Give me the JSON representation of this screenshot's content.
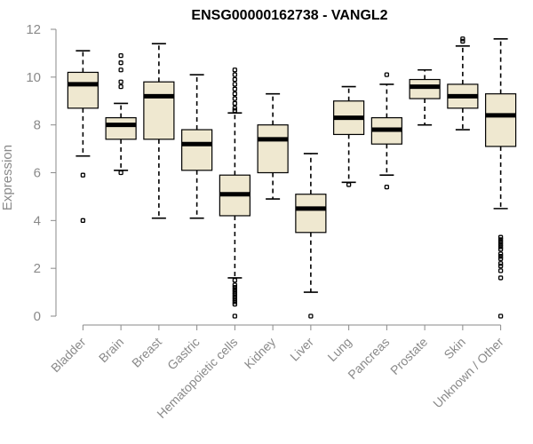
{
  "chart_data": {
    "type": "boxplot",
    "title": "ENSG00000162738 - VANGL2",
    "xlabel": "",
    "ylabel": "Expression",
    "ylim": [
      0,
      12
    ],
    "yticks": [
      0,
      2,
      4,
      6,
      8,
      10,
      12
    ],
    "box_fill": "#efe8d0",
    "categories": [
      "Bladder",
      "Brain",
      "Breast",
      "Gastric",
      "Hematopoietic cells",
      "Kidney",
      "Liver",
      "Lung",
      "Pancreas",
      "Prostate",
      "Skin",
      "Unknown / Other"
    ],
    "boxes": [
      {
        "name": "Bladder",
        "whislo": 6.7,
        "q1": 8.7,
        "med": 9.7,
        "q3": 10.2,
        "whishi": 11.1,
        "fliers": [
          5.9,
          4.0
        ]
      },
      {
        "name": "Brain",
        "whislo": 6.1,
        "q1": 7.4,
        "med": 8.0,
        "q3": 8.3,
        "whishi": 8.9,
        "fliers": [
          10.9,
          10.6,
          10.3,
          9.8,
          9.6,
          6.0
        ]
      },
      {
        "name": "Breast",
        "whislo": 4.1,
        "q1": 7.4,
        "med": 9.2,
        "q3": 9.8,
        "whishi": 11.4,
        "fliers": []
      },
      {
        "name": "Gastric",
        "whislo": 4.1,
        "q1": 6.1,
        "med": 7.2,
        "q3": 7.8,
        "whishi": 10.1,
        "fliers": []
      },
      {
        "name": "Hematopoietic cells",
        "whislo": 1.6,
        "q1": 4.2,
        "med": 5.1,
        "q3": 5.9,
        "whishi": 8.5,
        "fliers": [
          10.3,
          10.1,
          9.9,
          9.7,
          9.5,
          9.3,
          9.1,
          8.9,
          8.7,
          8.6,
          1.5,
          1.3,
          1.2,
          1.1,
          1.0,
          0.9,
          0.8,
          0.7,
          0.6,
          0.5,
          0.0
        ]
      },
      {
        "name": "Kidney",
        "whislo": 4.9,
        "q1": 6.0,
        "med": 7.4,
        "q3": 8.0,
        "whishi": 9.3,
        "fliers": []
      },
      {
        "name": "Liver",
        "whislo": 1.0,
        "q1": 3.5,
        "med": 4.5,
        "q3": 5.1,
        "whishi": 6.8,
        "fliers": [
          0.0
        ]
      },
      {
        "name": "Lung",
        "whislo": 5.6,
        "q1": 7.6,
        "med": 8.3,
        "q3": 9.0,
        "whishi": 9.6,
        "fliers": [
          5.5
        ]
      },
      {
        "name": "Pancreas",
        "whislo": 5.9,
        "q1": 7.2,
        "med": 7.8,
        "q3": 8.3,
        "whishi": 9.7,
        "fliers": [
          10.1,
          5.4
        ]
      },
      {
        "name": "Prostate",
        "whislo": 8.0,
        "q1": 9.1,
        "med": 9.6,
        "q3": 9.9,
        "whishi": 10.3,
        "fliers": []
      },
      {
        "name": "Skin",
        "whislo": 7.8,
        "q1": 8.7,
        "med": 9.2,
        "q3": 9.7,
        "whishi": 11.3,
        "fliers": [
          11.6,
          11.5
        ]
      },
      {
        "name": "Unknown / Other",
        "whislo": 4.5,
        "q1": 7.1,
        "med": 8.4,
        "q3": 9.3,
        "whishi": 11.6,
        "fliers": [
          3.3,
          3.2,
          3.1,
          3.0,
          2.9,
          2.8,
          2.6,
          2.5,
          2.4,
          2.2,
          2.1,
          1.9,
          1.6,
          0.0
        ]
      }
    ]
  }
}
